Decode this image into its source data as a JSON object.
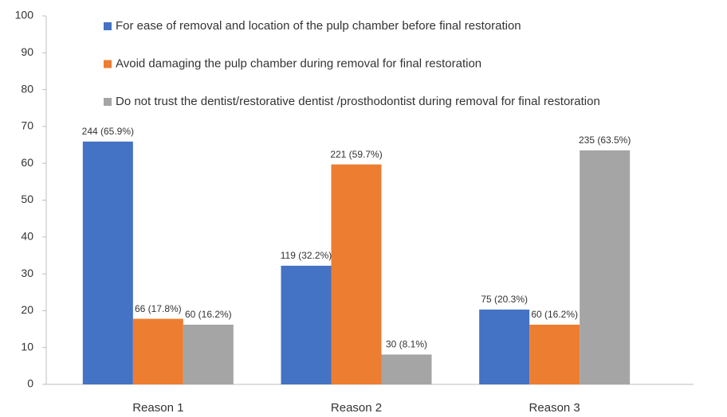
{
  "chart_data": {
    "type": "bar",
    "categories": [
      "Reason 1",
      "Reason 2",
      "Reason 3"
    ],
    "series": [
      {
        "name": "For ease of removal and location of the pulp chamber before final restoration",
        "color": "#4472c4",
        "values": [
          65.9,
          32.2,
          20.3
        ],
        "value_labels": [
          "244 (65.9%)",
          "119 (32.2%)",
          "75 (20.3%)"
        ]
      },
      {
        "name": "Avoid damaging the pulp chamber during removal for final restoration",
        "color": "#ed7d31",
        "values": [
          17.8,
          59.7,
          16.2
        ],
        "value_labels": [
          "66 (17.8%)",
          "221 (59.7%)",
          "60 (16.2%)"
        ]
      },
      {
        "name": "Do not trust the dentist/restorative dentist /prosthodontist during removal for final restoration",
        "color": "#a5a5a5",
        "values": [
          16.2,
          8.1,
          63.5
        ],
        "value_labels": [
          "60 (16.2%)",
          "30 (8.1%)",
          "235 (63.5%)"
        ]
      }
    ],
    "ylim": [
      0,
      100
    ],
    "yticks": [
      0,
      10,
      20,
      30,
      40,
      50,
      60,
      70,
      80,
      90,
      100
    ],
    "legend": "top"
  }
}
